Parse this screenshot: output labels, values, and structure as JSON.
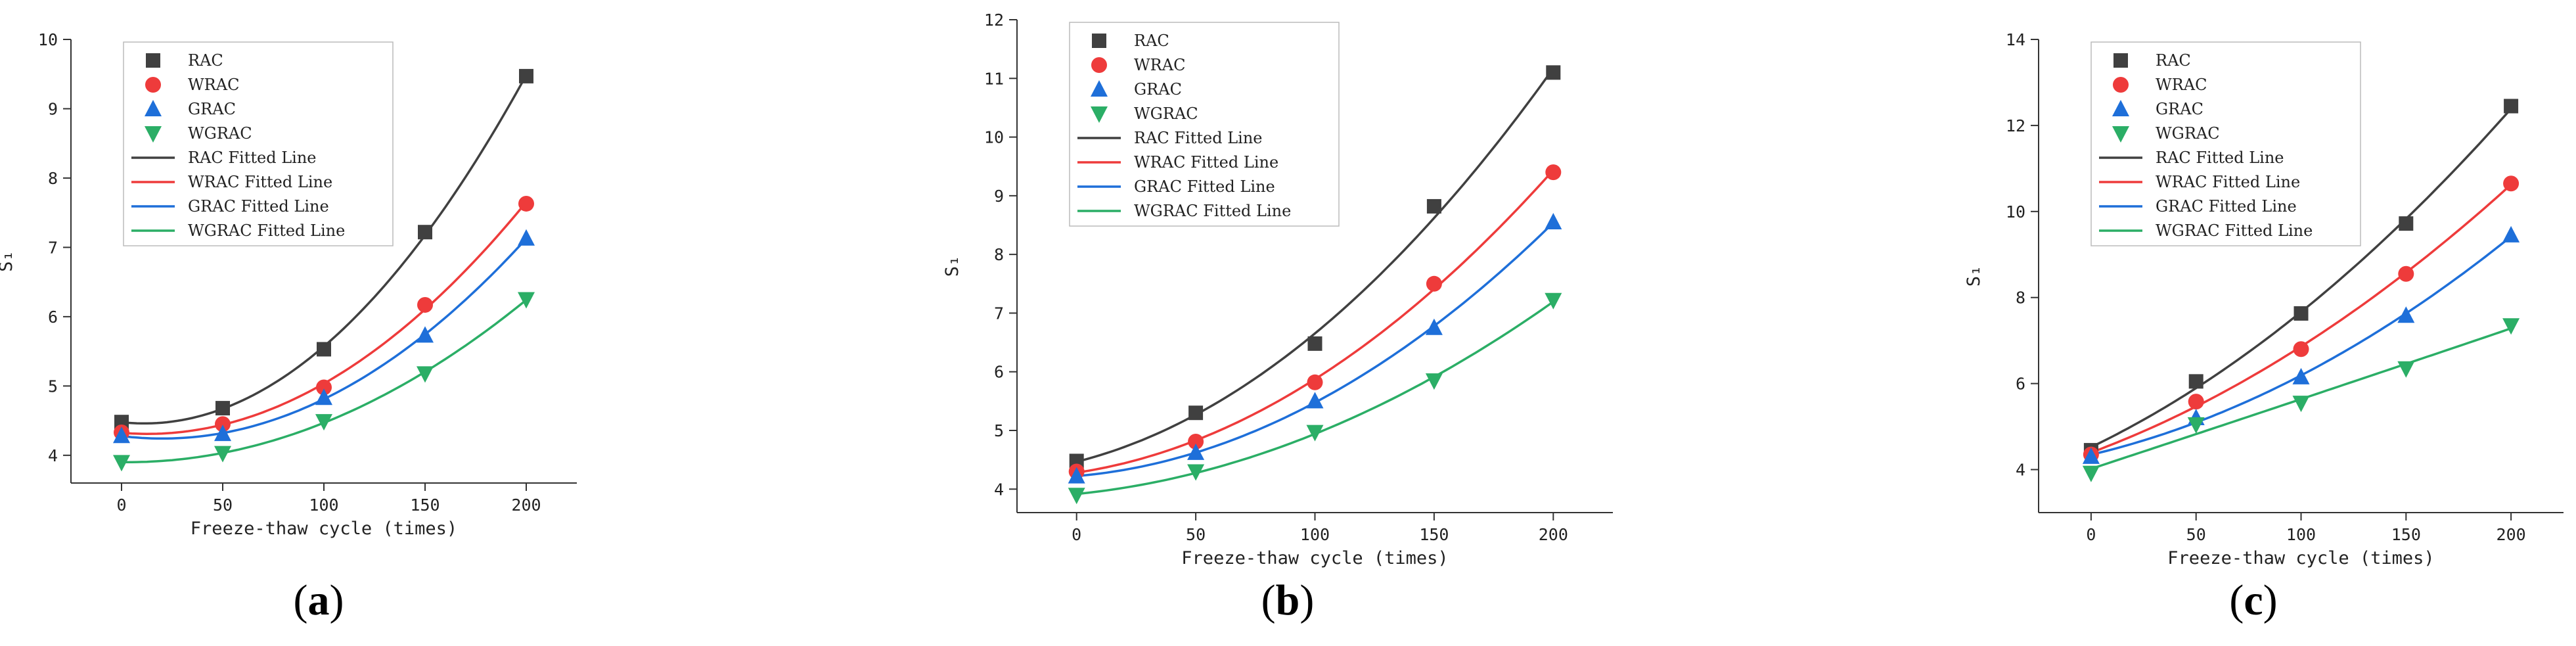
{
  "figure": {
    "colors": {
      "RAC": "#404040",
      "WRAC": "#EE3B3B",
      "GRAC": "#1E6FD9",
      "WGRAC": "#2BAE66",
      "axis": "#333333"
    }
  },
  "chart_data": [
    {
      "type": "line",
      "panel": "a",
      "caption": {
        "open": "(",
        "letter": "a",
        "close": ")"
      },
      "xlabel": "Freeze-thaw cycle (times)",
      "ylabel": "S₁",
      "xlim": [
        -25,
        225
      ],
      "ylim": [
        3.6,
        10.0
      ],
      "xticks": [
        0,
        50,
        100,
        150,
        200
      ],
      "yticks": [
        4,
        5,
        6,
        7,
        8,
        9,
        10
      ],
      "legend_position": "top-left",
      "x": [
        0,
        50,
        100,
        150,
        200
      ],
      "series": [
        {
          "key": "RAC",
          "name": "RAC",
          "fit_name": "RAC Fitted Line",
          "marker": "square",
          "values": [
            4.48,
            4.68,
            5.53,
            7.22,
            9.47
          ]
        },
        {
          "key": "WRAC",
          "name": "WRAC",
          "fit_name": "WRAC Fitted Line",
          "marker": "circle",
          "values": [
            4.33,
            4.45,
            4.98,
            6.17,
            7.63
          ]
        },
        {
          "key": "GRAC",
          "name": "GRAC",
          "fit_name": "GRAC Fitted Line",
          "marker": "triangle-up",
          "values": [
            4.28,
            4.31,
            4.83,
            5.73,
            7.13
          ]
        },
        {
          "key": "WGRAC",
          "name": "WGRAC",
          "fit_name": "WGRAC Fitted Line",
          "marker": "triangle-down",
          "values": [
            3.9,
            4.03,
            4.49,
            5.18,
            6.25
          ]
        }
      ]
    },
    {
      "type": "line",
      "panel": "b",
      "caption": {
        "open": "(",
        "letter": "b",
        "close": ")"
      },
      "xlabel": "Freeze-thaw cycle (times)",
      "ylabel": "S₁",
      "xlim": [
        -25,
        225
      ],
      "ylim": [
        3.6,
        12.0
      ],
      "xticks": [
        0,
        50,
        100,
        150,
        200
      ],
      "yticks": [
        4,
        5,
        6,
        7,
        8,
        9,
        10,
        11,
        12
      ],
      "legend_position": "top-left",
      "x": [
        0,
        50,
        100,
        150,
        200
      ],
      "series": [
        {
          "key": "RAC",
          "name": "RAC",
          "fit_name": "RAC Fitted Line",
          "marker": "square",
          "values": [
            4.48,
            5.3,
            6.48,
            8.82,
            11.1
          ]
        },
        {
          "key": "WRAC",
          "name": "WRAC",
          "fit_name": "WRAC Fitted Line",
          "marker": "circle",
          "values": [
            4.3,
            4.81,
            5.82,
            7.5,
            9.4
          ]
        },
        {
          "key": "GRAC",
          "name": "GRAC",
          "fit_name": "GRAC Fitted Line",
          "marker": "triangle-up",
          "values": [
            4.22,
            4.62,
            5.5,
            6.75,
            8.55
          ]
        },
        {
          "key": "WGRAC",
          "name": "WGRAC",
          "fit_name": "WGRAC Fitted Line",
          "marker": "triangle-down",
          "values": [
            3.9,
            4.3,
            4.97,
            5.85,
            7.22
          ]
        }
      ]
    },
    {
      "type": "line",
      "panel": "c",
      "caption": {
        "open": "(",
        "letter": "c",
        "close": ")"
      },
      "xlabel": "Freeze-thaw cycle (times)",
      "ylabel": "S₁",
      "xlim": [
        -25,
        225
      ],
      "ylim": [
        3.0,
        14.0
      ],
      "xticks": [
        0,
        50,
        100,
        150,
        200
      ],
      "yticks": [
        4,
        6,
        8,
        10,
        12,
        14
      ],
      "legend_position": "top-left",
      "x": [
        0,
        50,
        100,
        150,
        200
      ],
      "series": [
        {
          "key": "RAC",
          "name": "RAC",
          "fit_name": "RAC Fitted Line",
          "marker": "square",
          "values": [
            4.45,
            6.05,
            7.63,
            9.72,
            12.45
          ]
        },
        {
          "key": "WRAC",
          "name": "WRAC",
          "fit_name": "WRAC Fitted Line",
          "marker": "circle",
          "values": [
            4.35,
            5.58,
            6.8,
            8.55,
            10.65
          ]
        },
        {
          "key": "GRAC",
          "name": "GRAC",
          "fit_name": "GRAC Fitted Line",
          "marker": "triangle-up",
          "values": [
            4.3,
            5.2,
            6.15,
            7.58,
            9.45
          ]
        },
        {
          "key": "WGRAC",
          "name": "WGRAC",
          "fit_name": "WGRAC Fitted Line",
          "marker": "triangle-down",
          "values": [
            3.92,
            5.05,
            5.55,
            6.35,
            7.35
          ]
        }
      ]
    }
  ]
}
